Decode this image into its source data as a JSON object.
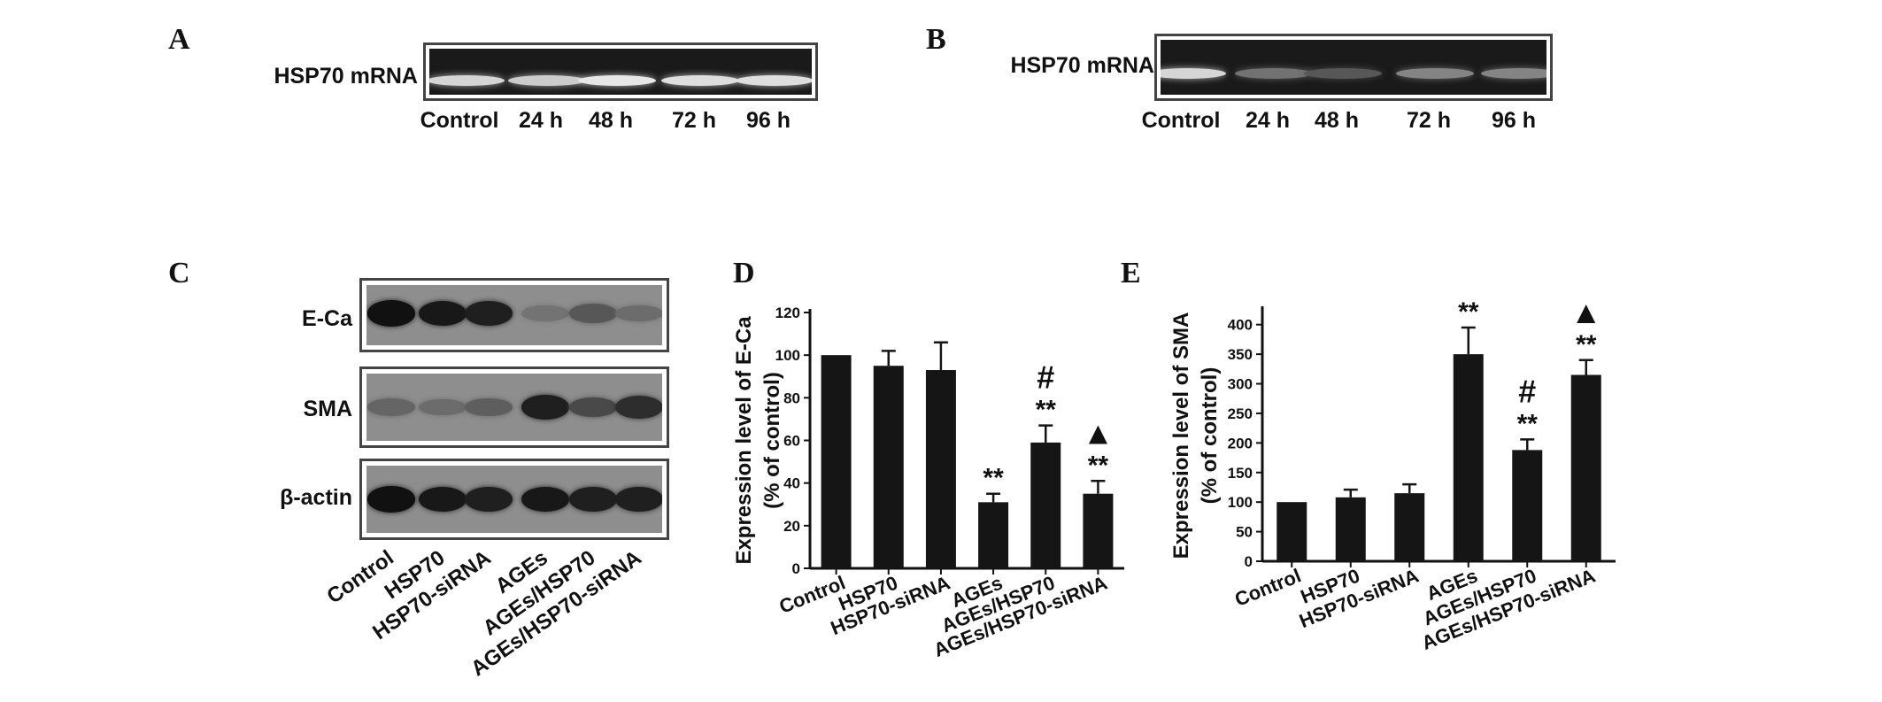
{
  "panels": {
    "a": {
      "letter": "A",
      "row_label": "HSP70 mRNA",
      "lanes": [
        "Control",
        "24 h",
        "48 h",
        "72 h",
        "96 h"
      ],
      "band_intensity": [
        0.85,
        0.8,
        0.95,
        0.9,
        0.9
      ]
    },
    "b": {
      "letter": "B",
      "row_label": "HSP70 mRNA",
      "lanes": [
        "Control",
        "24 h",
        "48 h",
        "72 h",
        "96 h"
      ],
      "band_intensity": [
        0.85,
        0.3,
        0.15,
        0.4,
        0.4
      ]
    },
    "c": {
      "letter": "C",
      "rows": [
        {
          "label": "E-Ca",
          "intensity": [
            0.95,
            0.9,
            0.85,
            0.25,
            0.45,
            0.3
          ]
        },
        {
          "label": "SMA",
          "intensity": [
            0.35,
            0.3,
            0.4,
            0.85,
            0.55,
            0.75
          ]
        },
        {
          "label": "β-actin",
          "intensity": [
            0.95,
            0.9,
            0.85,
            0.9,
            0.85,
            0.85
          ]
        }
      ],
      "lanes": [
        "Control",
        "HSP70",
        "HSP70-siRNA",
        "AGEs",
        "AGEs/HSP70",
        "AGEs/HSP70-siRNA"
      ]
    }
  },
  "chart_data": [
    {
      "letter": "D",
      "type": "bar",
      "categories": [
        "Control",
        "HSP70",
        "HSP70-siRNA",
        "AGEs",
        "AGEs/HSP70",
        "AGEs/HSP70-siRNA"
      ],
      "values": [
        100,
        95,
        93,
        31,
        59,
        35
      ],
      "errors": [
        0,
        7,
        13,
        4,
        8,
        6
      ],
      "annotations": [
        [
          "",
          ""
        ],
        [
          "",
          ""
        ],
        [
          "",
          ""
        ],
        [
          "**",
          ""
        ],
        [
          "**",
          "#"
        ],
        [
          "**",
          "▲"
        ]
      ],
      "xlabel": "",
      "ylabel": [
        "Expression level of E-Ca",
        "(% of control)"
      ],
      "ylim": [
        0,
        120
      ],
      "yticks": [
        0,
        20,
        40,
        60,
        80,
        100,
        120
      ]
    },
    {
      "letter": "E",
      "type": "bar",
      "categories": [
        "Control",
        "HSP70",
        "HSP70-siRNA",
        "AGEs",
        "AGEs/HSP70",
        "AGEs/HSP70-siRNA"
      ],
      "values": [
        100,
        108,
        115,
        350,
        188,
        315
      ],
      "errors": [
        0,
        13,
        15,
        45,
        18,
        25
      ],
      "annotations": [
        [
          "",
          ""
        ],
        [
          "",
          ""
        ],
        [
          "",
          ""
        ],
        [
          "**",
          ""
        ],
        [
          "**",
          "#"
        ],
        [
          "**",
          "▲"
        ]
      ],
      "xlabel": "",
      "ylabel": [
        "Expression level of SMA",
        "(% of control)"
      ],
      "ylim": [
        0,
        425
      ],
      "yticks": [
        0,
        50,
        100,
        150,
        200,
        250,
        300,
        350,
        400
      ]
    }
  ]
}
